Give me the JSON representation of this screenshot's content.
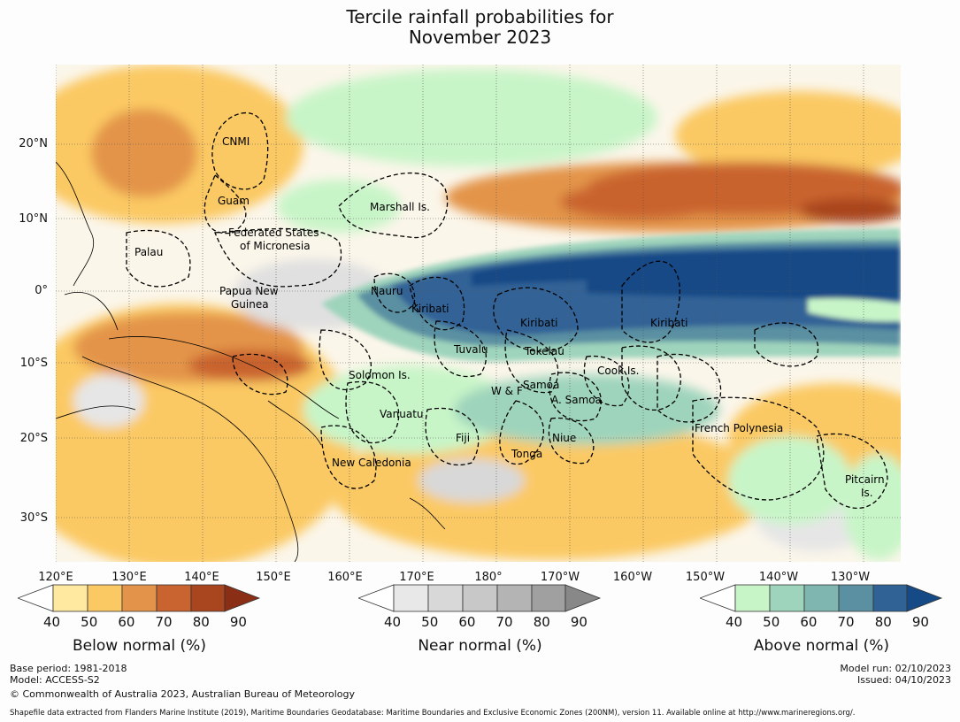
{
  "title": [
    "Tercile rainfall probabilities for",
    "November 2023"
  ],
  "lat_labels": [
    "20°N",
    "10°N",
    "0°",
    "10°S",
    "20°S",
    "30°S"
  ],
  "lon_labels": [
    "120°E",
    "130°E",
    "140°E",
    "150°E",
    "160°E",
    "170°E",
    "180°",
    "170°W",
    "160°W",
    "150°W",
    "140°W",
    "130°W"
  ],
  "region_labels": [
    "CNMI",
    "Guam",
    "Marshall Is.",
    "Federated States",
    "of Micronesia",
    "Palau",
    "Papua New",
    "Guinea",
    "Nauru",
    "Kiribati",
    "Kiribati",
    "Kiribati",
    "Tuvalu",
    "Tokelau",
    "Solomon Is.",
    "W & F",
    "Samoa",
    "A. Samoa",
    "Cook Is.",
    "Vanuatu",
    "Fiji",
    "Niue",
    "Tonga",
    "New Caledonia",
    "French Polynesia",
    "Pitcairn",
    "Is."
  ],
  "colorbars": [
    {
      "title": "Below normal (%)",
      "ticks": [
        "40",
        "50",
        "60",
        "70",
        "80",
        "90"
      ],
      "colors": [
        "#ffffff",
        "#ffe9a0",
        "#fbc964",
        "#e3944a",
        "#c9632f",
        "#a9451f",
        "#8a2f16"
      ]
    },
    {
      "title": "Near normal (%)",
      "ticks": [
        "40",
        "50",
        "60",
        "70",
        "80",
        "90"
      ],
      "colors": [
        "#ffffff",
        "#e8e8e8",
        "#d8d8d8",
        "#c8c8c8",
        "#b4b4b4",
        "#a0a0a0",
        "#888888"
      ]
    },
    {
      "title": "Above normal (%)",
      "ticks": [
        "40",
        "50",
        "60",
        "70",
        "80",
        "90"
      ],
      "colors": [
        "#ffffff",
        "#c8f5c8",
        "#9fd4bc",
        "#80b6b0",
        "#5a90a2",
        "#306296",
        "#154a86"
      ]
    }
  ],
  "footer_left": [
    "Base period: 1981-2018",
    "Model: ACCESS-S2",
    "© Commonwealth of Australia 2023, Australian Bureau of Meteorology"
  ],
  "footer_right": [
    "Model run: 02/10/2023",
    "Issued: 04/10/2023"
  ],
  "footer_note": "Shapefile data extracted from Flanders Marine Institute (2019), Maritime Boundaries Geodatabase: Maritime Boundaries and Exclusive Economic Zones (200NM), version 11. Available online at http://www.marineregions.org/."
}
